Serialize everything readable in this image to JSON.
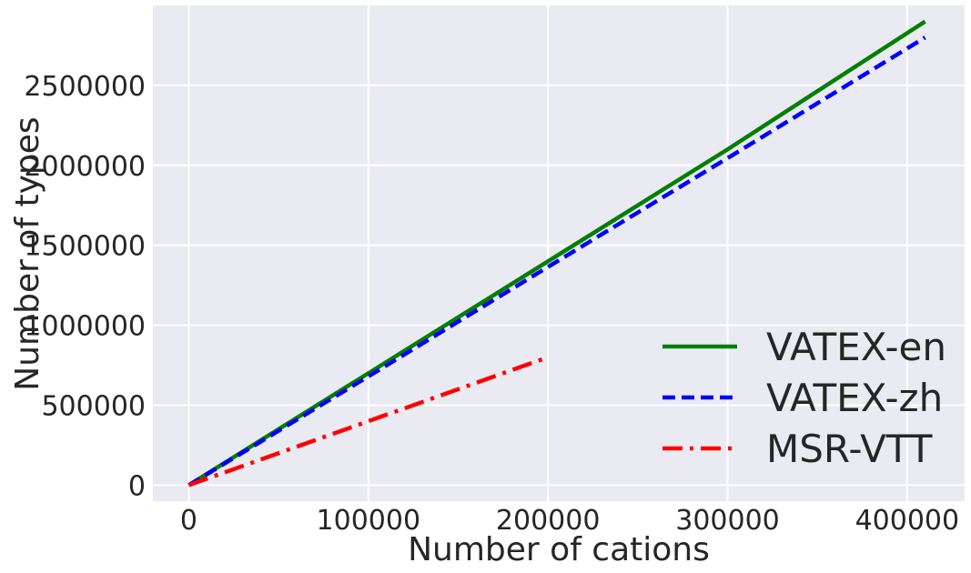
{
  "chart_data": {
    "type": "line",
    "title": "",
    "xlabel": "Number of cations",
    "ylabel": "Number of types",
    "xlim": [
      -20000,
      432000
    ],
    "ylim": [
      -100000,
      3000000
    ],
    "xticks": [
      0,
      100000,
      200000,
      300000,
      400000
    ],
    "xtick_labels": [
      "0",
      "100000",
      "200000",
      "300000",
      "400000"
    ],
    "yticks": [
      0,
      500000,
      1000000,
      1500000,
      2000000,
      2500000
    ],
    "ytick_labels": [
      "0",
      "500000",
      "1000000",
      "1500000",
      "2000000",
      "2500000"
    ],
    "grid": true,
    "legend_position": "lower-right",
    "series": [
      {
        "name": "VATEX-en",
        "color": "#008000",
        "style": "solid",
        "x": [
          0,
          100000,
          200000,
          300000,
          410000
        ],
        "y": [
          0,
          700000,
          1400000,
          2100000,
          2900000
        ]
      },
      {
        "name": "VATEX-zh",
        "color": "#0000ff",
        "style": "dashed",
        "x": [
          0,
          100000,
          200000,
          300000,
          410000
        ],
        "y": [
          0,
          680000,
          1365000,
          2045000,
          2800000
        ]
      },
      {
        "name": "MSR-VTT",
        "color": "#ff0000",
        "style": "dashdot",
        "x": [
          0,
          100000,
          200000
        ],
        "y": [
          0,
          400000,
          800000
        ]
      }
    ]
  }
}
